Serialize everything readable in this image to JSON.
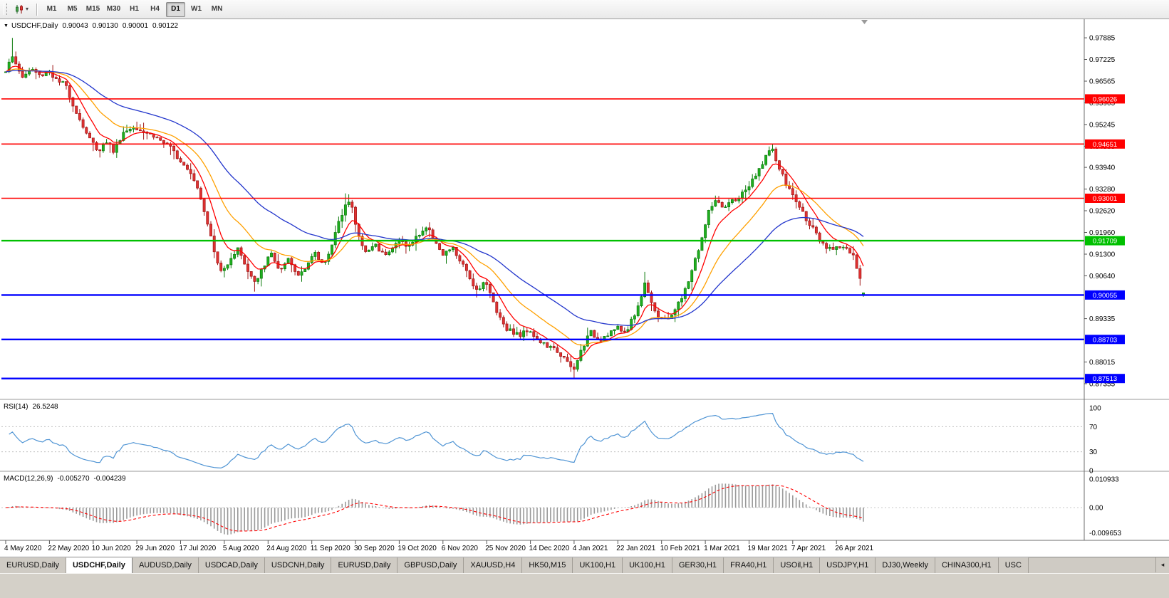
{
  "toolbar": {
    "timeframes": [
      "M1",
      "M5",
      "M15",
      "M30",
      "H1",
      "H4",
      "D1",
      "W1",
      "MN"
    ],
    "selected_timeframe": "D1"
  },
  "legend": {
    "symbol": "USDCHF,Daily",
    "open": "0.90043",
    "high": "0.90130",
    "low": "0.90001",
    "close": "0.90122"
  },
  "price_axis_ticks": [
    "0.97885",
    "0.97225",
    "0.96565",
    "0.95905",
    "0.95245",
    "0.94585",
    "0.93940",
    "0.93280",
    "0.92620",
    "0.91960",
    "0.91300",
    "0.90640",
    "0.89335",
    "0.88015",
    "0.87355"
  ],
  "hlines": [
    {
      "price": 0.96026,
      "label": "0.96026",
      "color": "#ff0000",
      "width": 1.6
    },
    {
      "price": 0.94651,
      "label": "0.94651",
      "color": "#ff0000",
      "width": 1.6
    },
    {
      "price": 0.93001,
      "label": "0.93001",
      "color": "#ff0000",
      "width": 1.6
    },
    {
      "price": 0.91709,
      "label": "0.91709",
      "color": "#00c000",
      "width": 2.4
    },
    {
      "price": 0.90055,
      "label": "0.90055",
      "color": "#0000ff",
      "width": 2.4
    },
    {
      "price": 0.88703,
      "label": "0.88703",
      "color": "#0000ff",
      "width": 2.4
    },
    {
      "price": 0.87513,
      "label": "0.87513",
      "color": "#0000ff",
      "width": 2.4
    }
  ],
  "date_axis": [
    "4 May 2020",
    "22 May 2020",
    "10 Jun 2020",
    "29 Jun 2020",
    "17 Jul 2020",
    "5 Aug 2020",
    "24 Aug 2020",
    "11 Sep 2020",
    "30 Sep 2020",
    "19 Oct 2020",
    "6 Nov 2020",
    "25 Nov 2020",
    "14 Dec 2020",
    "4 Jan 2021",
    "22 Jan 2021",
    "10 Feb 2021",
    "1 Mar 2021",
    "19 Mar 2021",
    "7 Apr 2021",
    "26 Apr 2021"
  ],
  "rsi_panel": {
    "name": "RSI(14)",
    "value": "26.5248",
    "axis_ticks": [
      "100",
      "70",
      "30",
      "0"
    ],
    "levels": [
      70,
      30
    ],
    "line_color": "#4f94d4"
  },
  "macd_panel": {
    "name": "MACD(12,26,9)",
    "main_value": "-0.005270",
    "signal_value": "-0.004239",
    "axis_ticks": [
      "0.010933",
      "0.00",
      "-0.009653"
    ],
    "hist_color": "#9a9a9a",
    "signal_color": "#ff0000"
  },
  "bottom_tabs": {
    "items": [
      "EURUSD,Daily",
      "USDCHF,Daily",
      "AUDUSD,Daily",
      "USDCAD,Daily",
      "USDCNH,Daily",
      "EURUSD,Daily",
      "GBPUSD,Daily",
      "XAUUSD,H4",
      "HK50,M15",
      "UK100,H1",
      "UK100,H1",
      "GER30,H1",
      "FRA40,H1",
      "USOil,H1",
      "USDJPY,H1",
      "DJ30,Weekly",
      "CHINA300,H1",
      "USC"
    ],
    "selected_index": 1
  },
  "chart_data": {
    "type": "candlestick",
    "symbol": "USDCHF",
    "timeframe": "Daily",
    "bars": 256,
    "seed": 1337,
    "noise": 0.0016,
    "wick": 0.003,
    "price_range": {
      "top": 0.9845,
      "bottom": 0.869
    },
    "anchors": [
      [
        0.0,
        0.969
      ],
      [
        0.006,
        0.9735
      ],
      [
        0.012,
        0.9705
      ],
      [
        0.02,
        0.9668
      ],
      [
        0.03,
        0.9695
      ],
      [
        0.04,
        0.9672
      ],
      [
        0.05,
        0.969
      ],
      [
        0.06,
        0.9655
      ],
      [
        0.07,
        0.9645
      ],
      [
        0.078,
        0.9588
      ],
      [
        0.088,
        0.953
      ],
      [
        0.098,
        0.948
      ],
      [
        0.108,
        0.9445
      ],
      [
        0.118,
        0.9475
      ],
      [
        0.126,
        0.9442
      ],
      [
        0.136,
        0.9498
      ],
      [
        0.15,
        0.952
      ],
      [
        0.165,
        0.95
      ],
      [
        0.18,
        0.9478
      ],
      [
        0.195,
        0.9445
      ],
      [
        0.205,
        0.9412
      ],
      [
        0.215,
        0.9385
      ],
      [
        0.225,
        0.9325
      ],
      [
        0.235,
        0.923
      ],
      [
        0.245,
        0.9115
      ],
      [
        0.252,
        0.9072
      ],
      [
        0.262,
        0.912
      ],
      [
        0.272,
        0.9148
      ],
      [
        0.282,
        0.9078
      ],
      [
        0.292,
        0.9038
      ],
      [
        0.3,
        0.9092
      ],
      [
        0.31,
        0.9132
      ],
      [
        0.32,
        0.9075
      ],
      [
        0.33,
        0.9112
      ],
      [
        0.34,
        0.9062
      ],
      [
        0.35,
        0.9095
      ],
      [
        0.36,
        0.9132
      ],
      [
        0.37,
        0.9098
      ],
      [
        0.38,
        0.9155
      ],
      [
        0.39,
        0.9238
      ],
      [
        0.397,
        0.9295
      ],
      [
        0.403,
        0.9282
      ],
      [
        0.41,
        0.9192
      ],
      [
        0.42,
        0.9132
      ],
      [
        0.43,
        0.9162
      ],
      [
        0.44,
        0.913
      ],
      [
        0.45,
        0.9148
      ],
      [
        0.46,
        0.9172
      ],
      [
        0.47,
        0.9152
      ],
      [
        0.48,
        0.9185
      ],
      [
        0.49,
        0.9212
      ],
      [
        0.5,
        0.9178
      ],
      [
        0.51,
        0.9122
      ],
      [
        0.52,
        0.9152
      ],
      [
        0.53,
        0.9108
      ],
      [
        0.54,
        0.9062
      ],
      [
        0.55,
        0.9018
      ],
      [
        0.558,
        0.9052
      ],
      [
        0.566,
        0.9002
      ],
      [
        0.575,
        0.8942
      ],
      [
        0.585,
        0.8902
      ],
      [
        0.6,
        0.8882
      ],
      [
        0.61,
        0.8905
      ],
      [
        0.62,
        0.8868
      ],
      [
        0.632,
        0.8848
      ],
      [
        0.645,
        0.8832
      ],
      [
        0.655,
        0.8798
      ],
      [
        0.662,
        0.8772
      ],
      [
        0.672,
        0.8845
      ],
      [
        0.682,
        0.8892
      ],
      [
        0.692,
        0.8868
      ],
      [
        0.702,
        0.8888
      ],
      [
        0.712,
        0.8905
      ],
      [
        0.722,
        0.8892
      ],
      [
        0.732,
        0.8938
      ],
      [
        0.74,
        0.8992
      ],
      [
        0.746,
        0.9048
      ],
      [
        0.752,
        0.8992
      ],
      [
        0.76,
        0.8942
      ],
      [
        0.77,
        0.8925
      ],
      [
        0.78,
        0.8962
      ],
      [
        0.79,
        0.9002
      ],
      [
        0.8,
        0.9082
      ],
      [
        0.81,
        0.9162
      ],
      [
        0.82,
        0.9262
      ],
      [
        0.828,
        0.9298
      ],
      [
        0.836,
        0.9262
      ],
      [
        0.845,
        0.9288
      ],
      [
        0.855,
        0.9302
      ],
      [
        0.865,
        0.9332
      ],
      [
        0.875,
        0.9368
      ],
      [
        0.885,
        0.9425
      ],
      [
        0.893,
        0.9452
      ],
      [
        0.9,
        0.9402
      ],
      [
        0.91,
        0.9342
      ],
      [
        0.92,
        0.9298
      ],
      [
        0.93,
        0.9252
      ],
      [
        0.94,
        0.9212
      ],
      [
        0.95,
        0.9162
      ],
      [
        0.96,
        0.9142
      ],
      [
        0.97,
        0.9158
      ],
      [
        0.98,
        0.9148
      ],
      [
        0.988,
        0.9122
      ],
      [
        0.994,
        0.9072
      ],
      [
        1.0,
        0.90122
      ]
    ],
    "extremes": [
      {
        "f": 0.006,
        "h": 0.9788
      },
      {
        "f": 0.108,
        "l": 0.9424
      },
      {
        "f": 0.292,
        "l": 0.9016
      },
      {
        "f": 0.397,
        "h": 0.9315
      },
      {
        "f": 0.55,
        "l": 0.8998
      },
      {
        "f": 0.662,
        "l": 0.8752
      },
      {
        "f": 0.746,
        "h": 0.9076
      },
      {
        "f": 0.828,
        "h": 0.9308
      },
      {
        "f": 0.893,
        "h": 0.9465
      }
    ],
    "last_bar": {
      "o": 0.90043,
      "h": 0.9013,
      "l": 0.90001,
      "c": 0.90122
    },
    "ma": [
      {
        "period": 8,
        "color": "#ff0000"
      },
      {
        "period": 20,
        "color": "#ffa000"
      },
      {
        "period": 45,
        "color": "#2336cc"
      }
    ],
    "candle_up": {
      "fill": "#1faf1f",
      "stroke": "#0c7a0c"
    },
    "candle_down": {
      "fill": "#e03232",
      "stroke": "#9e1414"
    },
    "rsi_period": 14,
    "macd": {
      "fast": 12,
      "slow": 26,
      "signal": 9
    },
    "macd_scale": {
      "max": 0.010933,
      "min": -0.009653
    }
  }
}
